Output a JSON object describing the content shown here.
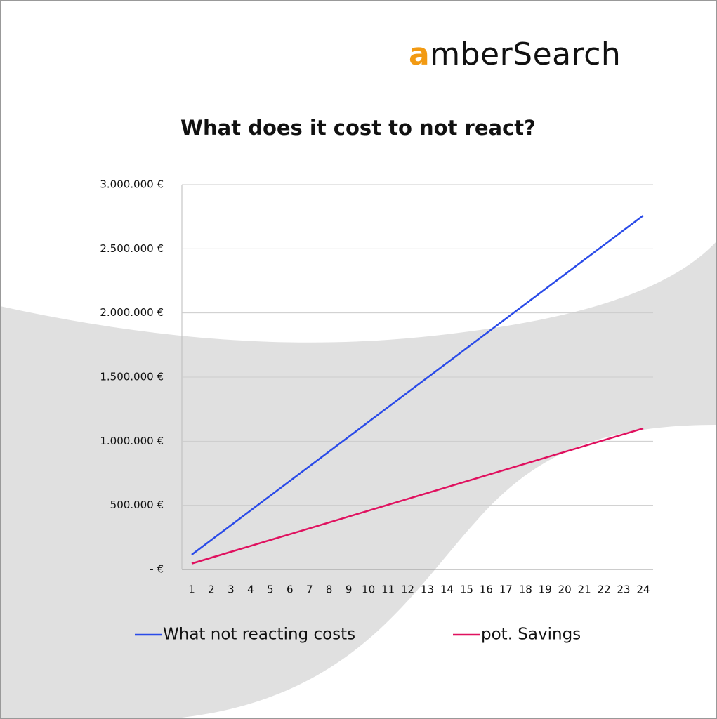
{
  "logo": {
    "text": "amberSearch"
  },
  "chart_data": {
    "type": "line",
    "title": "What does it cost to not react?",
    "categories": [
      1,
      2,
      3,
      4,
      5,
      6,
      7,
      8,
      9,
      10,
      11,
      12,
      13,
      14,
      15,
      16,
      17,
      18,
      19,
      20,
      21,
      22,
      23,
      24
    ],
    "series": [
      {
        "name": "What not reacting costs",
        "color": "#2a4be8",
        "values": [
          115000,
          230000,
          345000,
          460000,
          575000,
          690000,
          805000,
          920000,
          1035000,
          1150000,
          1265000,
          1380000,
          1495000,
          1610000,
          1725000,
          1840000,
          1955000,
          2070000,
          2185000,
          2300000,
          2415000,
          2530000,
          2645000,
          2760000
        ]
      },
      {
        "name": "pot. Savings",
        "color": "#e0115f",
        "values": [
          45800,
          91700,
          137500,
          183300,
          229200,
          275000,
          320800,
          366700,
          412500,
          458300,
          504200,
          550000,
          595800,
          641700,
          687500,
          733300,
          779200,
          825000,
          870800,
          916700,
          962500,
          1008300,
          1054200,
          1100000
        ]
      }
    ],
    "ylim": [
      0,
      3000000
    ],
    "yticks": [
      {
        "value": 0,
        "label": "-  €"
      },
      {
        "value": 500000,
        "label": "500.000 €"
      },
      {
        "value": 1000000,
        "label": "1.000.000 €"
      },
      {
        "value": 1500000,
        "label": "1.500.000 €"
      },
      {
        "value": 2000000,
        "label": "2.000.000 €"
      },
      {
        "value": 2500000,
        "label": "2.500.000 €"
      },
      {
        "value": 3000000,
        "label": "3.000.000 €"
      }
    ],
    "grid": true,
    "legend": "bottom"
  }
}
